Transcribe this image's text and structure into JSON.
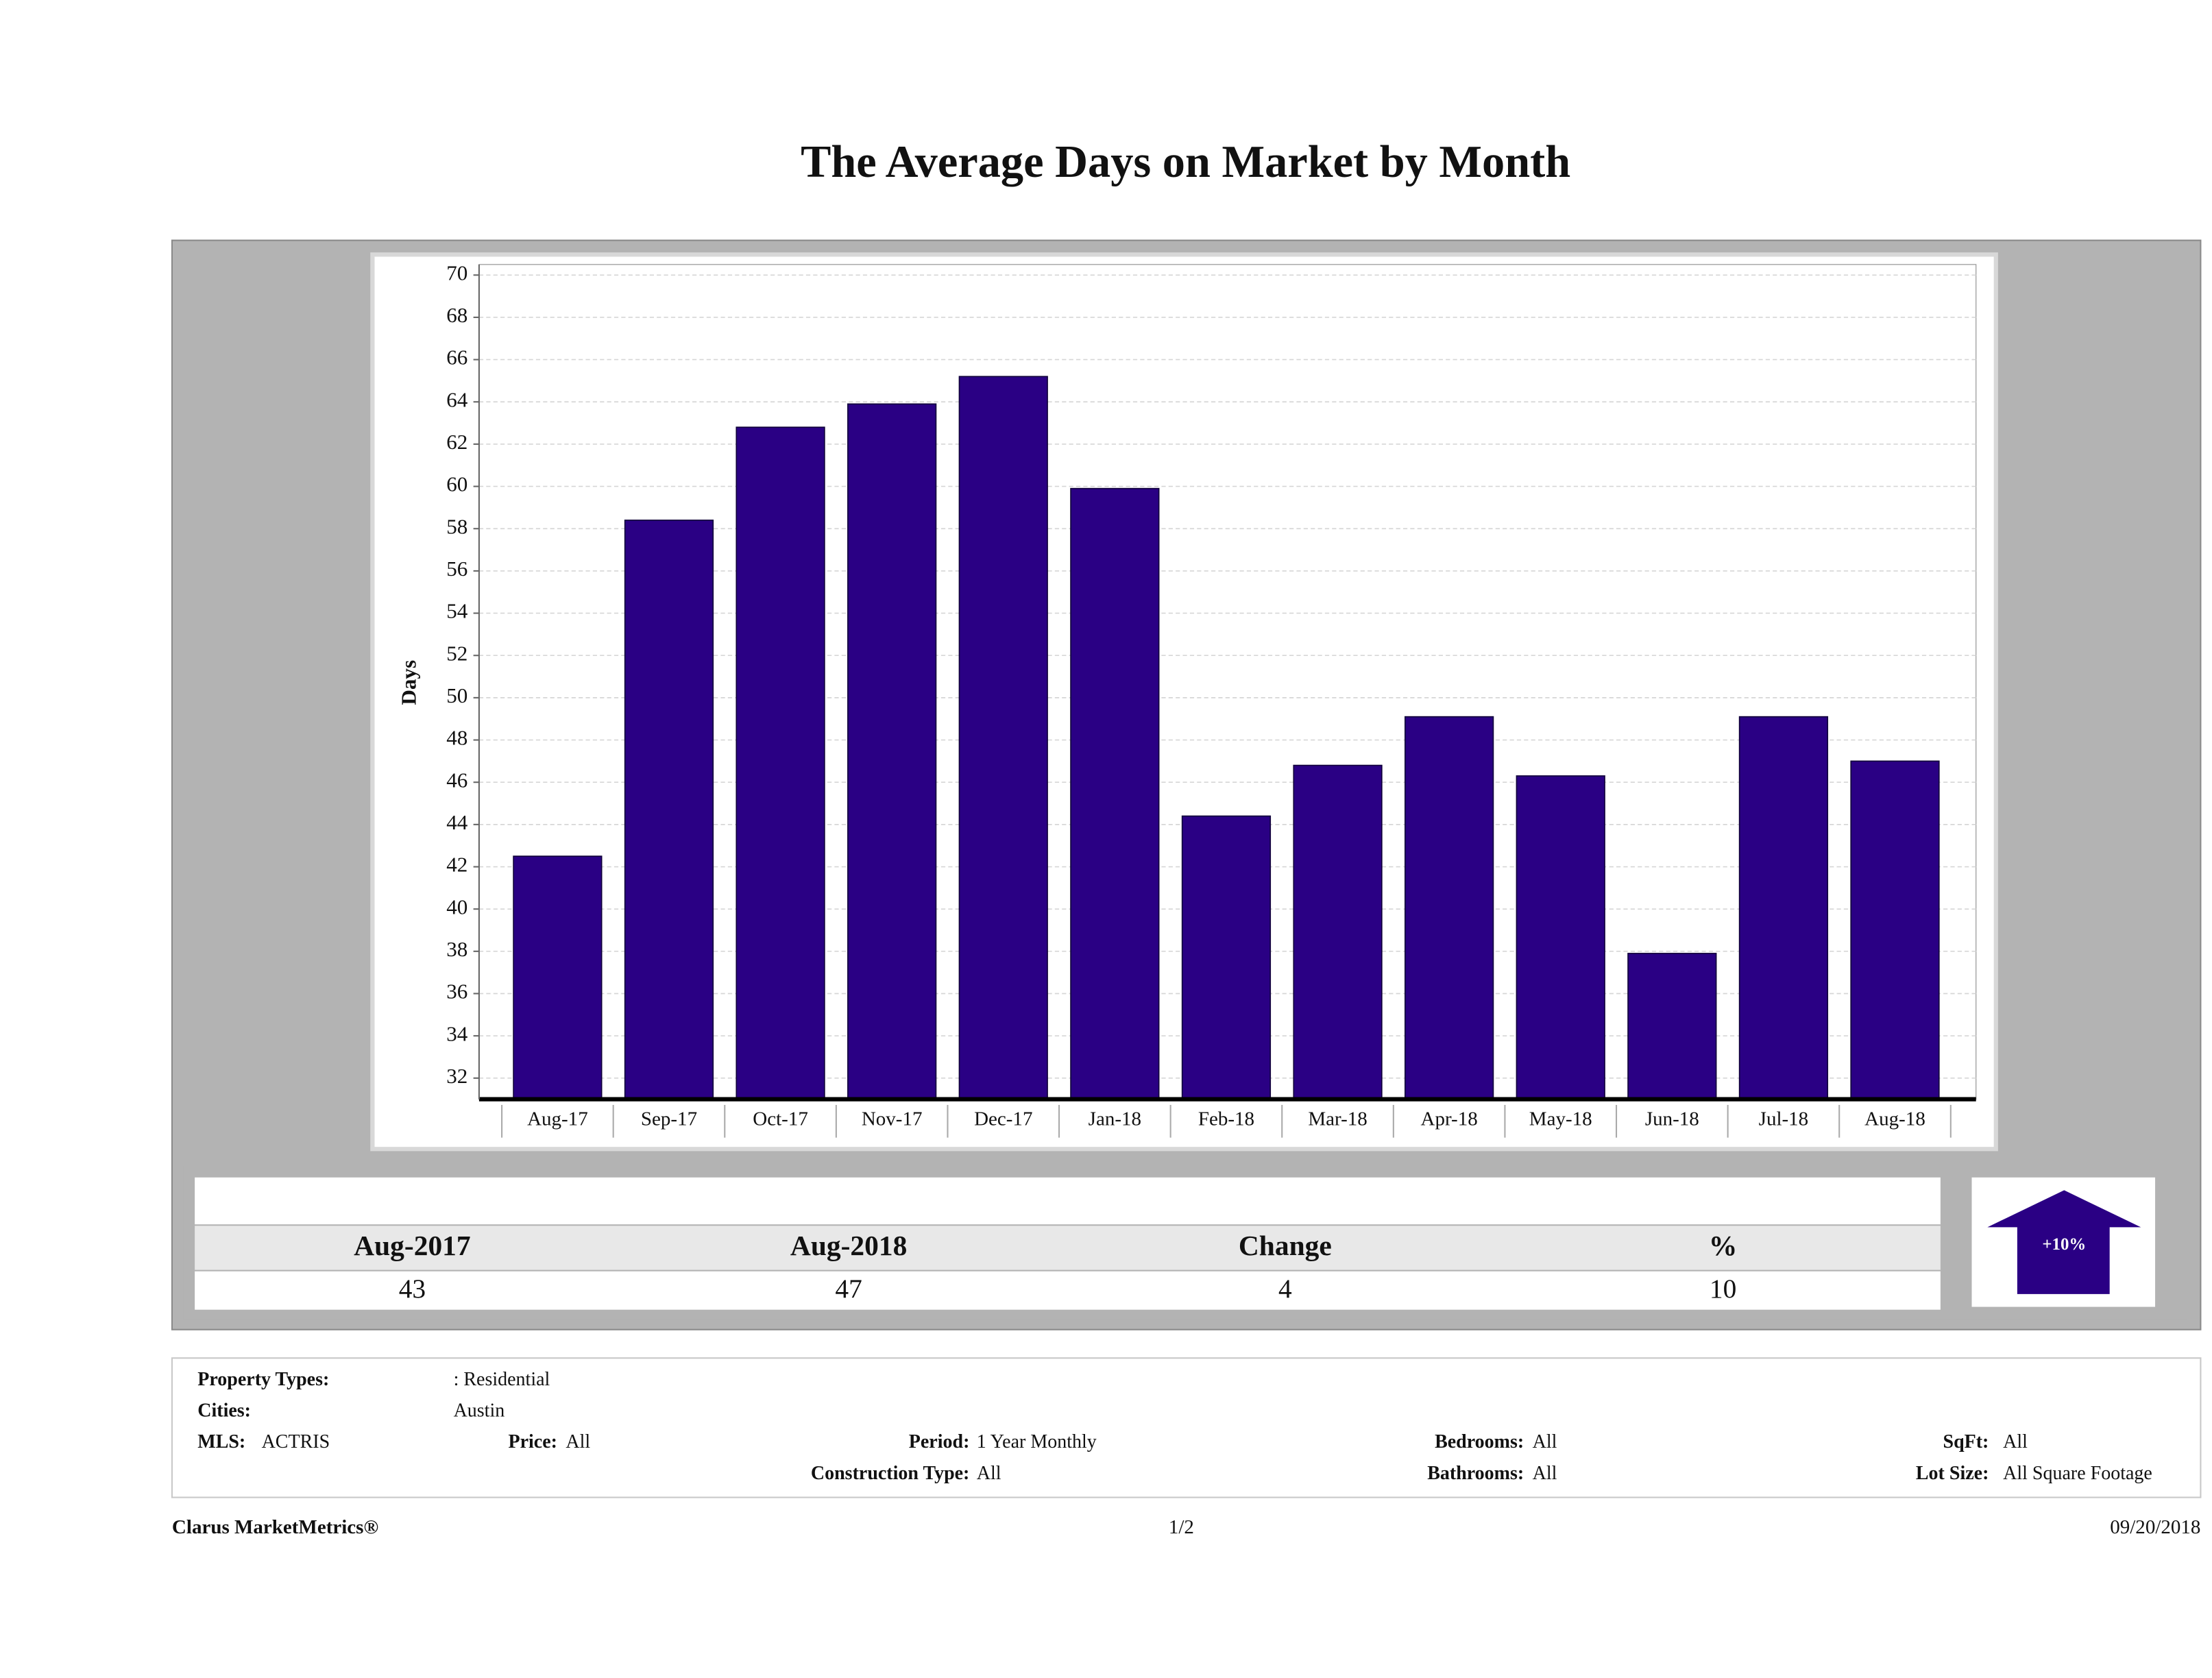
{
  "chart_data": {
    "type": "bar",
    "title": "The Average Days on Market by Month",
    "y_label": "Days",
    "categories": [
      "Aug-17",
      "Sep-17",
      "Oct-17",
      "Nov-17",
      "Dec-17",
      "Jan-18",
      "Feb-18",
      "Mar-18",
      "Apr-18",
      "May-18",
      "Jun-18",
      "Jul-18",
      "Aug-18"
    ],
    "values": [
      42.5,
      58.4,
      62.8,
      63.9,
      65.2,
      59.9,
      44.4,
      46.8,
      49.1,
      46.3,
      37.9,
      49.1,
      47.0
    ],
    "color": "#2a0084",
    "ylim": [
      31,
      70.5
    ],
    "yticks": [
      32,
      34,
      36,
      38,
      40,
      42,
      44,
      46,
      48,
      50,
      52,
      54,
      56,
      58,
      60,
      62,
      64,
      66,
      68,
      70
    ],
    "grid": true
  },
  "summary": {
    "headers": [
      "Aug-2017",
      "Aug-2018",
      "Change",
      "%"
    ],
    "values": [
      43,
      47,
      4,
      10
    ],
    "badge": "+10%"
  },
  "filters": [
    {
      "label": "Property Types:",
      "value": ": Residential"
    },
    {
      "label": "Cities:",
      "value": "Austin"
    },
    {
      "label": "MLS:",
      "value": "ACTRIS"
    },
    {
      "label": "Price:",
      "value": "All"
    },
    {
      "label": "Period:",
      "value": "1 Year Monthly"
    },
    {
      "label": "Bedrooms:",
      "value": "All"
    },
    {
      "label": "SqFt:",
      "value": "All"
    },
    {
      "label": "Construction Type:",
      "value": "All"
    },
    {
      "label": "Bathrooms:",
      "value": "All"
    },
    {
      "label": "Lot Size:",
      "value": "All Square Footage"
    }
  ],
  "footer": {
    "brand": "Clarus MarketMetrics®",
    "page": "1/2",
    "date": "09/20/2018"
  }
}
